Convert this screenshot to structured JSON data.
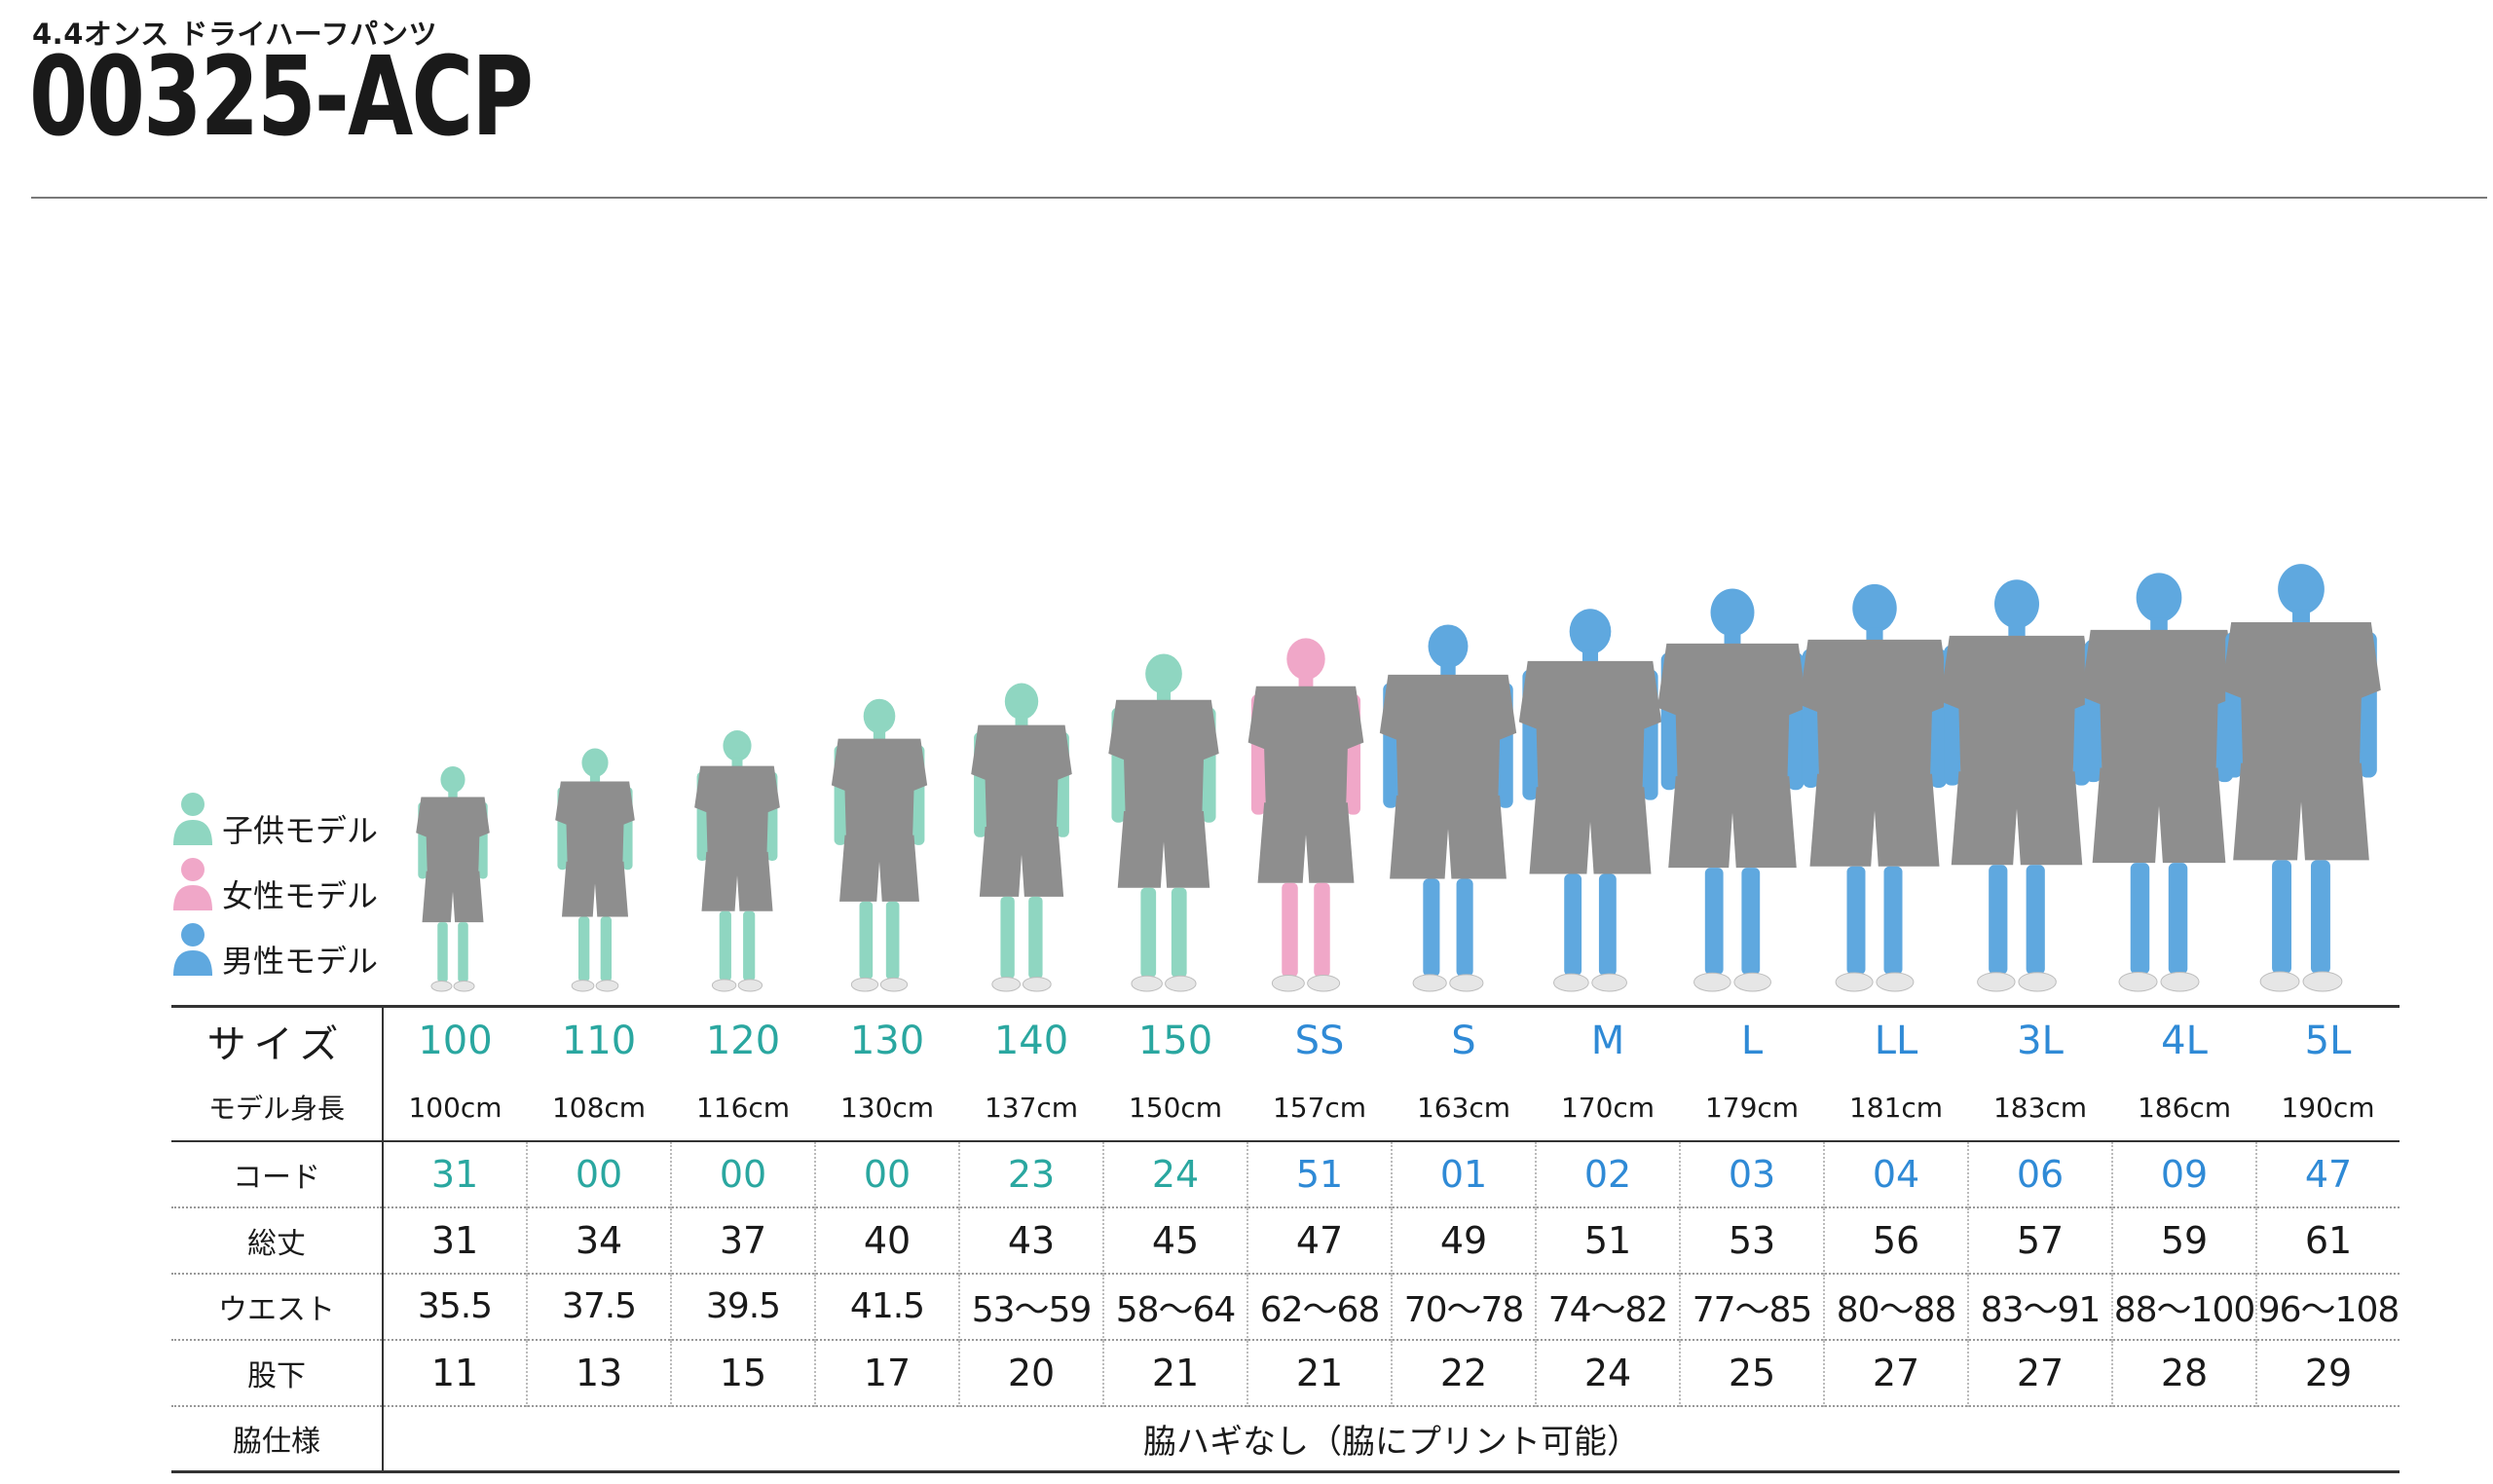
{
  "header": {
    "subtitle": "4.4オンス ドライハーフパンツ",
    "title": "00325-ACP"
  },
  "colors": {
    "kid": "#8fd6c1",
    "woman": "#f0a7c8",
    "man": "#5fa8df",
    "garment": "#8e8e8e",
    "kid_text": "#2aa7a0",
    "adult_text": "#2f8ad6"
  },
  "legend": [
    {
      "label": "子供モデル",
      "color": "#8fd6c1"
    },
    {
      "label": "女性モデル",
      "color": "#f0a7c8"
    },
    {
      "label": "男性モデル",
      "color": "#5fa8df"
    }
  ],
  "table": {
    "labels": {
      "size": "サイズ",
      "model_height": "モデル身長",
      "code": "コード",
      "total_length": "総丈",
      "waist": "ウエスト",
      "inseam": "股下",
      "side_spec": "脇仕様"
    },
    "sizes": [
      "100",
      "110",
      "120",
      "130",
      "140",
      "150",
      "SS",
      "S",
      "M",
      "L",
      "LL",
      "3L",
      "4L",
      "5L"
    ],
    "model_type": [
      "kid",
      "kid",
      "kid",
      "kid",
      "kid",
      "kid",
      "woman",
      "man",
      "man",
      "man",
      "man",
      "man",
      "man",
      "man"
    ],
    "model_heights": [
      "100cm",
      "108cm",
      "116cm",
      "130cm",
      "137cm",
      "150cm",
      "157cm",
      "163cm",
      "170cm",
      "179cm",
      "181cm",
      "183cm",
      "186cm",
      "190cm"
    ],
    "codes": [
      "31",
      "00",
      "00",
      "00",
      "23",
      "24",
      "51",
      "01",
      "02",
      "03",
      "04",
      "06",
      "09",
      "47"
    ],
    "total_length": [
      "31",
      "34",
      "37",
      "40",
      "43",
      "45",
      "47",
      "49",
      "51",
      "53",
      "56",
      "57",
      "59",
      "61"
    ],
    "waist": [
      "35.5",
      "37.5",
      "39.5",
      "41.5",
      "53〜59",
      "58〜64",
      "62〜68",
      "70〜78",
      "74〜82",
      "77〜85",
      "80〜88",
      "83〜91",
      "88〜100",
      "96〜108"
    ],
    "inseam": [
      "11",
      "13",
      "15",
      "17",
      "20",
      "21",
      "21",
      "22",
      "24",
      "25",
      "27",
      "27",
      "28",
      "29"
    ],
    "side_spec_note": "脇ハギなし（脇にプリント可能）"
  },
  "figures": {
    "heights_cm": [
      100,
      108,
      116,
      130,
      137,
      150,
      157,
      163,
      170,
      179,
      181,
      183,
      186,
      190
    ]
  }
}
